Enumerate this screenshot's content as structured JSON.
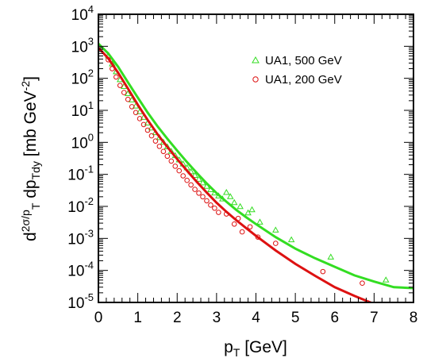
{
  "chart_data": {
    "type": "scatter",
    "x_scale": "linear",
    "y_scale": "log",
    "xlim": [
      0,
      8
    ],
    "ylim": [
      1e-05,
      10000.0
    ],
    "xlabel": "p_T [GeV]",
    "ylabel": "d^2σ/p_T dp_Tdy [mb GeV^-2]",
    "x_ticks": [
      "0",
      "1",
      "2",
      "3",
      "4",
      "5",
      "6",
      "7",
      "8"
    ],
    "y_ticks": [
      {
        "base": "10",
        "exp": "-5",
        "value": 1e-05
      },
      {
        "base": "10",
        "exp": "-4",
        "value": 0.0001
      },
      {
        "base": "10",
        "exp": "-3",
        "value": 0.001
      },
      {
        "base": "10",
        "exp": "-2",
        "value": 0.01
      },
      {
        "base": "10",
        "exp": "-1",
        "value": 0.1
      },
      {
        "base": "10",
        "exp": "0",
        "value": 1
      },
      {
        "base": "10",
        "exp": "1",
        "value": 10
      },
      {
        "base": "10",
        "exp": "2",
        "value": 100
      },
      {
        "base": "10",
        "exp": "3",
        "value": 1000
      },
      {
        "base": "10",
        "exp": "4",
        "value": 10000
      }
    ],
    "legend_position": "top-right",
    "grid": false,
    "series": [
      {
        "name": "UA1, 500 GeV",
        "color": "#33dd22",
        "marker": "triangle",
        "points": [
          [
            0.25,
            500
          ],
          [
            0.35,
            280
          ],
          [
            0.45,
            160
          ],
          [
            0.55,
            90
          ],
          [
            0.65,
            55
          ],
          [
            0.75,
            33
          ],
          [
            0.85,
            21
          ],
          [
            0.95,
            13.5
          ],
          [
            1.05,
            9
          ],
          [
            1.15,
            6
          ],
          [
            1.25,
            4
          ],
          [
            1.35,
            2.8
          ],
          [
            1.45,
            2
          ],
          [
            1.55,
            1.4
          ],
          [
            1.65,
            1.0
          ],
          [
            1.75,
            0.72
          ],
          [
            1.85,
            0.52
          ],
          [
            1.95,
            0.38
          ],
          [
            2.05,
            0.28
          ],
          [
            2.15,
            0.21
          ],
          [
            2.25,
            0.16
          ],
          [
            2.35,
            0.12
          ],
          [
            2.45,
            0.092
          ],
          [
            2.55,
            0.07
          ],
          [
            2.65,
            0.054
          ],
          [
            2.75,
            0.042
          ],
          [
            2.85,
            0.033
          ],
          [
            2.95,
            0.026
          ],
          [
            3.05,
            0.021
          ],
          [
            3.15,
            0.017
          ],
          [
            3.25,
            0.027
          ],
          [
            3.35,
            0.02
          ],
          [
            3.45,
            0.013
          ],
          [
            3.6,
            0.0098
          ],
          [
            3.8,
            0.0062
          ],
          [
            3.9,
            0.0078
          ],
          [
            4.1,
            0.0032
          ],
          [
            4.5,
            0.0018
          ],
          [
            4.9,
            0.0009
          ],
          [
            5.9,
            0.00026
          ],
          [
            7.3,
            5e-05
          ]
        ],
        "curve": [
          [
            0,
            1200
          ],
          [
            0.25,
            600
          ],
          [
            0.5,
            230
          ],
          [
            0.75,
            75
          ],
          [
            1.0,
            25
          ],
          [
            1.25,
            8.5
          ],
          [
            1.5,
            3.2
          ],
          [
            1.75,
            1.3
          ],
          [
            2.0,
            0.55
          ],
          [
            2.25,
            0.24
          ],
          [
            2.5,
            0.11
          ],
          [
            2.75,
            0.052
          ],
          [
            3.0,
            0.026
          ],
          [
            3.25,
            0.014
          ],
          [
            3.5,
            0.0078
          ],
          [
            3.75,
            0.0046
          ],
          [
            4.0,
            0.0028
          ],
          [
            4.5,
            0.0011
          ],
          [
            5.0,
            0.00048
          ],
          [
            5.5,
            0.00024
          ],
          [
            6.0,
            0.00013
          ],
          [
            6.5,
            7e-05
          ],
          [
            7.0,
            4.5e-05
          ],
          [
            7.5,
            3e-05
          ],
          [
            8.0,
            2.8e-05
          ]
        ]
      },
      {
        "name": "UA1, 200 GeV",
        "color": "#dd1111",
        "marker": "circle",
        "points": [
          [
            0.25,
            380
          ],
          [
            0.35,
            200
          ],
          [
            0.45,
            110
          ],
          [
            0.55,
            60
          ],
          [
            0.65,
            36
          ],
          [
            0.75,
            22
          ],
          [
            0.85,
            13
          ],
          [
            0.95,
            8.5
          ],
          [
            1.05,
            5.5
          ],
          [
            1.15,
            3.6
          ],
          [
            1.25,
            2.4
          ],
          [
            1.35,
            1.6
          ],
          [
            1.45,
            1.1
          ],
          [
            1.55,
            0.75
          ],
          [
            1.65,
            0.52
          ],
          [
            1.75,
            0.37
          ],
          [
            1.85,
            0.26
          ],
          [
            1.95,
            0.18
          ],
          [
            2.05,
            0.13
          ],
          [
            2.15,
            0.09
          ],
          [
            2.25,
            0.065
          ],
          [
            2.35,
            0.047
          ],
          [
            2.45,
            0.034
          ],
          [
            2.55,
            0.026
          ],
          [
            2.65,
            0.02
          ],
          [
            2.75,
            0.015
          ],
          [
            2.85,
            0.011
          ],
          [
            2.95,
            0.0088
          ],
          [
            3.05,
            0.0065
          ],
          [
            3.25,
            0.0058
          ],
          [
            3.45,
            0.0028
          ],
          [
            3.55,
            0.0042
          ],
          [
            3.65,
            0.0016
          ],
          [
            3.85,
            0.0023
          ],
          [
            4.05,
            0.0011
          ],
          [
            4.5,
            0.0007
          ],
          [
            5.7,
            9.2e-05
          ],
          [
            6.7,
            4e-05
          ]
        ],
        "curve": [
          [
            0,
            900
          ],
          [
            0.25,
            420
          ],
          [
            0.5,
            150
          ],
          [
            0.75,
            48
          ],
          [
            1.0,
            15
          ],
          [
            1.25,
            5
          ],
          [
            1.5,
            1.8
          ],
          [
            1.75,
            0.72
          ],
          [
            2.0,
            0.3
          ],
          [
            2.25,
            0.13
          ],
          [
            2.5,
            0.058
          ],
          [
            2.75,
            0.027
          ],
          [
            3.0,
            0.013
          ],
          [
            3.25,
            0.0068
          ],
          [
            3.5,
            0.0037
          ],
          [
            3.75,
            0.0021
          ],
          [
            4.0,
            0.0012
          ],
          [
            4.5,
            0.00042
          ],
          [
            5.0,
            0.00016
          ],
          [
            5.5,
            6.8e-05
          ],
          [
            6.0,
            3e-05
          ],
          [
            6.5,
            1.6e-05
          ],
          [
            6.95,
            9.5e-06
          ]
        ]
      }
    ]
  }
}
